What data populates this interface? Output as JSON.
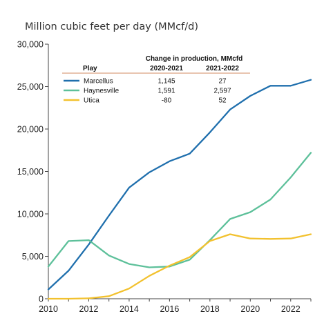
{
  "chart_data": {
    "type": "line",
    "unit_title": "Million cubic feet per day (MMcf/d)",
    "xlabel": "",
    "ylabel": "",
    "x": [
      2010,
      2011,
      2012,
      2013,
      2014,
      2015,
      2016,
      2017,
      2018,
      2019,
      2020,
      2021,
      2022,
      2023
    ],
    "xlim": [
      2010,
      2023
    ],
    "ylim": [
      0,
      30000
    ],
    "x_ticks": [
      "2010",
      "2012",
      "2014",
      "2016",
      "2018",
      "2020",
      "2022"
    ],
    "y_ticks": [
      "0",
      "5,000",
      "10,000",
      "15,000",
      "20,000",
      "25,000",
      "30,000"
    ],
    "grid": false,
    "legend_position": "top-left",
    "series": [
      {
        "name": "Marcellus",
        "color": "#1f6fad",
        "values": [
          1100,
          3300,
          6400,
          9800,
          13100,
          14900,
          16200,
          17100,
          19600,
          22300,
          23900,
          25100,
          25100,
          25800
        ]
      },
      {
        "name": "Haynesville",
        "color": "#5dc09a",
        "values": [
          3800,
          6800,
          6900,
          5100,
          4100,
          3700,
          3800,
          4600,
          6900,
          9400,
          10200,
          11700,
          14300,
          17200
        ]
      },
      {
        "name": "Utica",
        "color": "#f2c12e",
        "values": [
          0,
          0,
          50,
          300,
          1200,
          2700,
          3900,
          4900,
          6800,
          7600,
          7100,
          7050,
          7100,
          7600
        ]
      }
    ],
    "legend_table": {
      "header_change": "Change in production, MMcfd",
      "header_play": "Play",
      "header_col1": "2020-2021",
      "header_col2": "2021-2022",
      "rows": [
        {
          "play": "Marcellus",
          "v1": "1,145",
          "v2": "27"
        },
        {
          "play": "Haynesville",
          "v1": "1,591",
          "v2": "2,597"
        },
        {
          "play": "Utica",
          "v1": "-80",
          "v2": "52"
        }
      ]
    }
  }
}
